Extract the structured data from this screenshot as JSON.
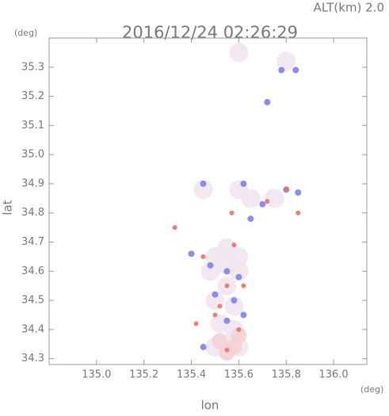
{
  "chart_data": {
    "type": "scatter",
    "title": "2016/12/24 02:26:29",
    "subtitle": "ALT(km) 2.0",
    "y_unit": "(deg)",
    "x_unit": "(deg)",
    "y_label": "lat",
    "x_label": "lon",
    "xlim": [
      134.8,
      136.14
    ],
    "ylim": [
      34.28,
      35.4
    ],
    "xticks": [
      {
        "value": 135,
        "label": "135.0"
      },
      135.2,
      135.4,
      135.6,
      135.8,
      {
        "value": 136,
        "label": "136.0"
      }
    ],
    "yticks": [
      34.3,
      34.4,
      34.5,
      34.6,
      34.7,
      34.8,
      34.9,
      {
        "value": 35,
        "label": "35.0"
      },
      35.1,
      35.2,
      35.3
    ],
    "series": [
      {
        "color": "#efe6f0",
        "radius": 12,
        "x": [
          135.55,
          135.5,
          135.6,
          135.55,
          135.48,
          135.6,
          135.55,
          135.5,
          135.58,
          135.52,
          135.58,
          135.55,
          135.6,
          135.5,
          135.65,
          135.75,
          135.6,
          135.45,
          135.8,
          135.6
        ],
        "y": [
          34.68,
          34.65,
          34.65,
          34.62,
          34.6,
          34.6,
          34.55,
          34.5,
          34.48,
          34.42,
          34.4,
          34.35,
          34.34,
          34.34,
          34.85,
          34.85,
          34.88,
          34.88,
          35.32,
          35.35
        ]
      },
      {
        "color": "#f5d0d4",
        "radius": 10,
        "x": [
          135.52,
          135.58,
          135.55,
          135.6
        ],
        "y": [
          34.36,
          34.34,
          34.32,
          34.38
        ]
      },
      {
        "color": "#7f80ee",
        "radius": 4,
        "x": [
          135.45,
          135.62,
          135.7,
          135.8,
          135.85,
          135.55,
          135.48,
          135.6,
          135.5,
          135.62,
          135.55,
          135.45,
          135.58,
          135.78,
          135.84,
          135.72,
          135.4,
          135.65
        ],
        "y": [
          34.9,
          34.9,
          34.83,
          34.88,
          34.87,
          34.6,
          34.62,
          34.58,
          34.52,
          34.45,
          34.43,
          34.34,
          34.5,
          35.29,
          35.29,
          35.18,
          34.66,
          34.78
        ]
      },
      {
        "color": "#ee6f70",
        "radius": 3,
        "x": [
          135.33,
          135.57,
          135.72,
          135.85,
          135.8,
          135.45,
          135.58,
          135.55,
          135.52,
          135.6,
          135.55,
          135.42,
          135.62,
          135.5
        ],
        "y": [
          34.75,
          34.8,
          34.84,
          34.8,
          34.88,
          34.65,
          34.69,
          34.55,
          34.48,
          34.4,
          34.33,
          34.42,
          34.55,
          34.45
        ]
      }
    ]
  }
}
